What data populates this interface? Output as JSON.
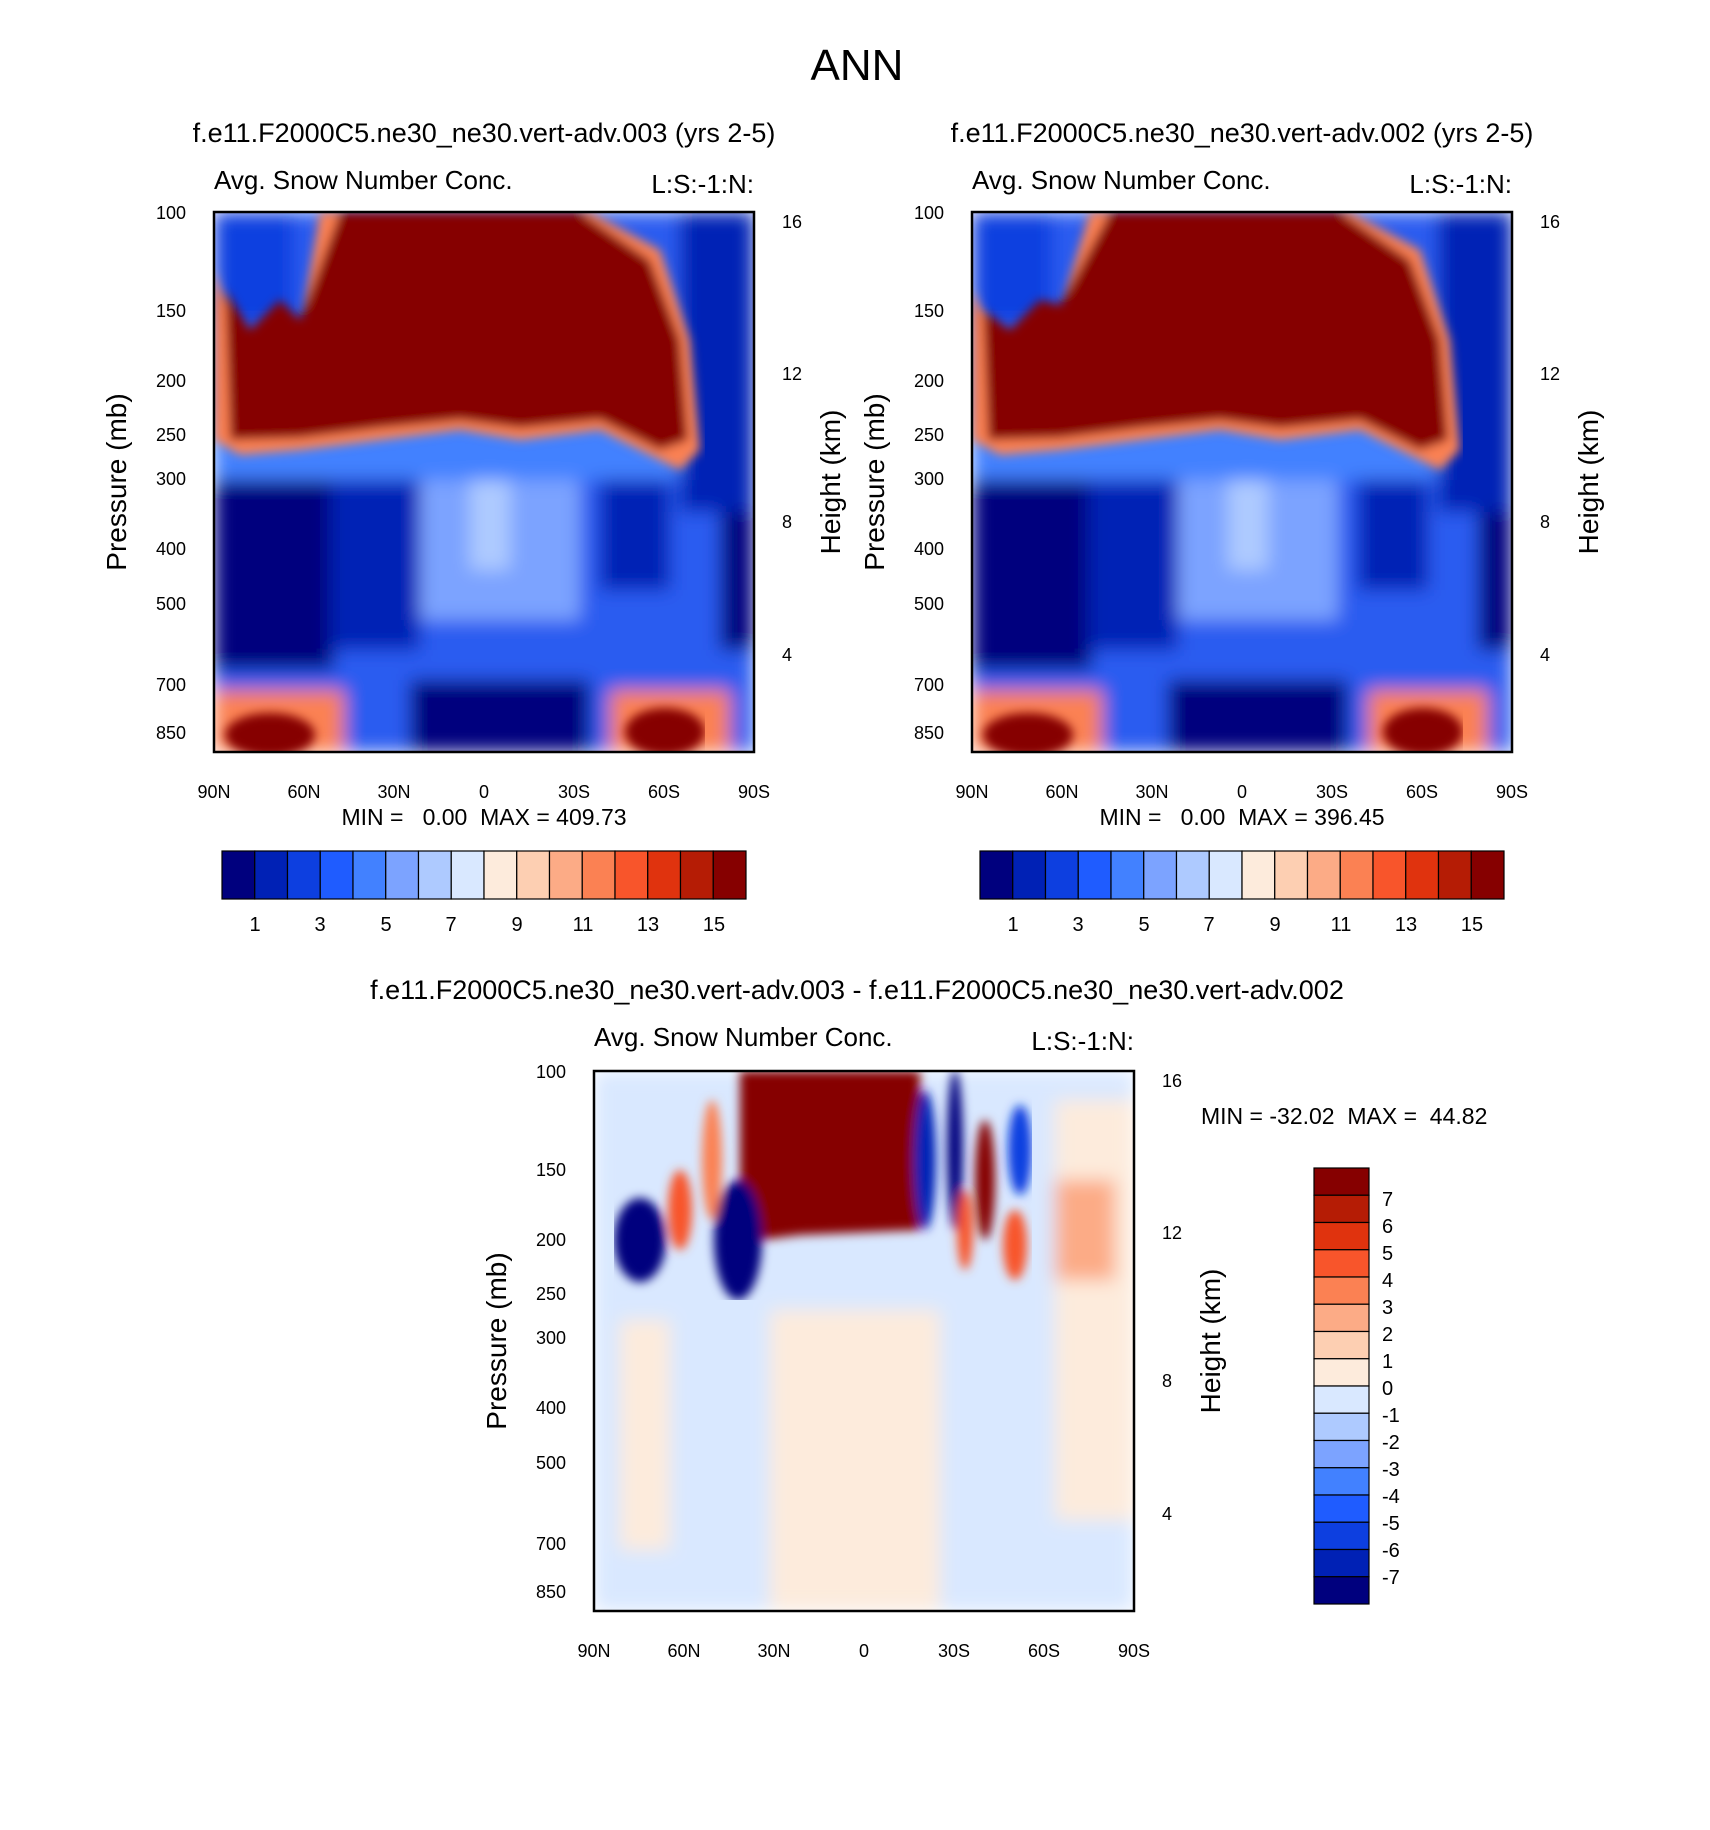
{
  "figure_title": "ANN",
  "chart_data": [
    {
      "type": "heatmap",
      "title": "f.e11.F2000C5.ne30_ne30.vert-adv.003 (yrs 2-5)",
      "subtitle_left": "Avg. Snow Number Conc.",
      "subtitle_right": "L:S:-1:N:",
      "ylabel": "Pressure (mb)",
      "ylabel_right": "Height (km)",
      "x_ticks": [
        "90N",
        "60N",
        "30N",
        "0",
        "30S",
        "60S",
        "90S"
      ],
      "y_ticks": [
        "100",
        "150",
        "200",
        "250",
        "300",
        "400",
        "500",
        "700",
        "850"
      ],
      "y2_ticks": [
        "16",
        "12",
        "8",
        "4"
      ],
      "stats": "MIN =   0.00  MAX = 409.73",
      "min": 0.0,
      "max": 409.73,
      "colorbar_ticks": [
        "1",
        "3",
        "5",
        "7",
        "9",
        "11",
        "13",
        "15"
      ],
      "colorbar_levels": 16
    },
    {
      "type": "heatmap",
      "title": "f.e11.F2000C5.ne30_ne30.vert-adv.002 (yrs 2-5)",
      "subtitle_left": "Avg. Snow Number Conc.",
      "subtitle_right": "L:S:-1:N:",
      "ylabel": "Pressure (mb)",
      "ylabel_right": "Height (km)",
      "x_ticks": [
        "90N",
        "60N",
        "30N",
        "0",
        "30S",
        "60S",
        "90S"
      ],
      "y_ticks": [
        "100",
        "150",
        "200",
        "250",
        "300",
        "400",
        "500",
        "700",
        "850"
      ],
      "y2_ticks": [
        "16",
        "12",
        "8",
        "4"
      ],
      "stats": "MIN =   0.00  MAX = 396.45",
      "min": 0.0,
      "max": 396.45,
      "colorbar_ticks": [
        "1",
        "3",
        "5",
        "7",
        "9",
        "11",
        "13",
        "15"
      ],
      "colorbar_levels": 16
    },
    {
      "type": "heatmap",
      "title": "f.e11.F2000C5.ne30_ne30.vert-adv.003 - f.e11.F2000C5.ne30_ne30.vert-adv.002",
      "subtitle_left": "Avg. Snow Number Conc.",
      "subtitle_right": "L:S:-1:N:",
      "ylabel": "Pressure (mb)",
      "ylabel_right": "Height (km)",
      "x_ticks": [
        "90N",
        "60N",
        "30N",
        "0",
        "30S",
        "60S",
        "90S"
      ],
      "y_ticks": [
        "100",
        "150",
        "200",
        "250",
        "300",
        "400",
        "500",
        "700",
        "850"
      ],
      "y2_ticks": [
        "16",
        "12",
        "8",
        "4"
      ],
      "stats": "MIN = -32.02  MAX =  44.82",
      "min": -32.02,
      "max": 44.82,
      "colorbar_ticks": [
        "7",
        "6",
        "5",
        "4",
        "3",
        "2",
        "1",
        "0",
        "-1",
        "-2",
        "-3",
        "-4",
        "-5",
        "-6",
        "-7"
      ],
      "colorbar_levels": 16
    }
  ],
  "colors": {
    "diverging": [
      "#00007e",
      "#0021b5",
      "#0d3fe0",
      "#1f5cff",
      "#4281ff",
      "#7ca3ff",
      "#aecaff",
      "#d9e8ff",
      "#fdebdc",
      "#fdcfb2",
      "#fcab86",
      "#fb8153",
      "#f8552b",
      "#e0330e",
      "#b51c05",
      "#860000"
    ]
  }
}
